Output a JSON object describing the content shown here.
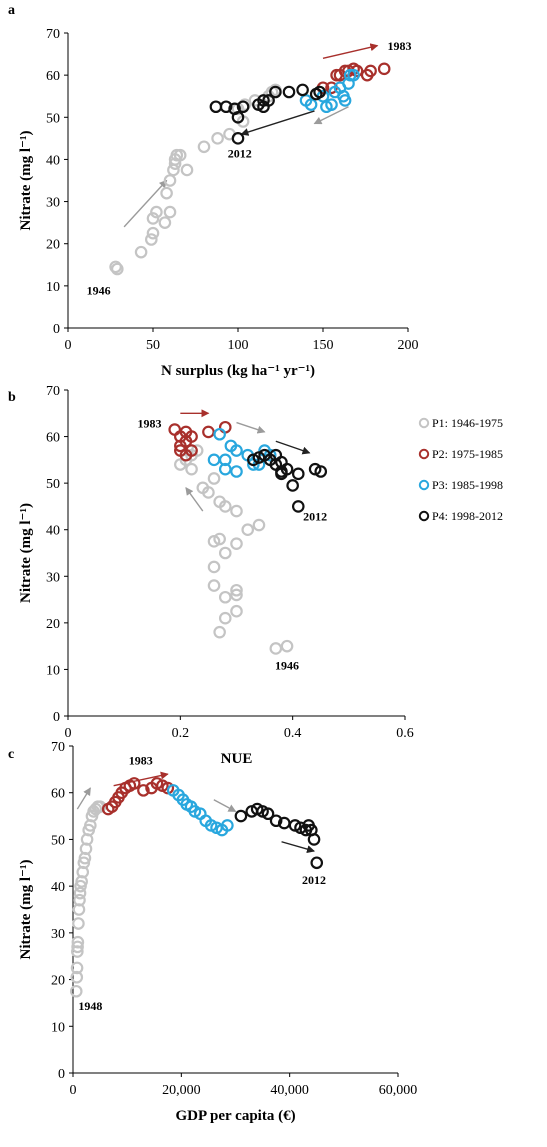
{
  "colors": {
    "P1": "#c4c4c4",
    "P2": "#a8302c",
    "P3": "#29a7de",
    "P4": "#111111",
    "arrow_gray": "#9b9b9b",
    "arrow_dark": "#222222"
  },
  "legend": [
    {
      "key": "P1",
      "label": "P1: 1946-1975"
    },
    {
      "key": "P2",
      "label": "P2: 1975-1985"
    },
    {
      "key": "P3",
      "label": "P3: 1985-1998"
    },
    {
      "key": "P4",
      "label": "P4: 1998-2012"
    }
  ],
  "chart_data": [
    {
      "panel": "a",
      "type": "scatter",
      "xlabel": "N surplus (kg ha⁻¹ yr⁻¹)",
      "ylabel": "Nitrate (mg l⁻¹)",
      "xlim": [
        0,
        200
      ],
      "ylim": [
        0,
        70
      ],
      "xticks": [
        "0",
        "50",
        "100",
        "150",
        "200"
      ],
      "yticks": [
        "0",
        "10",
        "20",
        "30",
        "40",
        "50",
        "60",
        "70"
      ],
      "series": [
        {
          "key": "P1",
          "points": [
            [
              28,
              14.5
            ],
            [
              29,
              14
            ],
            [
              43,
              18
            ],
            [
              49,
              21
            ],
            [
              50,
              22.5
            ],
            [
              50,
              26
            ],
            [
              52,
              27.5
            ],
            [
              57,
              25
            ],
            [
              60,
              27.5
            ],
            [
              58,
              32
            ],
            [
              60,
              35
            ],
            [
              62,
              37.5
            ],
            [
              63,
              39
            ],
            [
              63,
              40
            ],
            [
              64,
              41
            ],
            [
              66,
              41
            ],
            [
              70,
              37.5
            ],
            [
              80,
              43
            ],
            [
              88,
              45
            ],
            [
              95,
              46
            ],
            [
              103,
              49
            ],
            [
              100,
              52
            ],
            [
              104,
              53
            ],
            [
              110,
              54
            ],
            [
              118,
              55
            ],
            [
              120,
              56
            ],
            [
              122,
              56.5
            ]
          ]
        },
        {
          "key": "P2",
          "points": [
            [
              150,
              57
            ],
            [
              155,
              57
            ],
            [
              158,
              60
            ],
            [
              160,
              60
            ],
            [
              163,
              61
            ],
            [
              165,
              61
            ],
            [
              168,
              61.5
            ],
            [
              170,
              61
            ],
            [
              176,
              60
            ],
            [
              178,
              61
            ],
            [
              186,
              61.5
            ]
          ]
        },
        {
          "key": "P3",
          "points": [
            [
              140,
              54
            ],
            [
              143,
              53
            ],
            [
              150,
              55
            ],
            [
              152,
              52.5
            ],
            [
              155,
              53
            ],
            [
              157,
              56
            ],
            [
              160,
              57
            ],
            [
              162,
              55
            ],
            [
              163,
              54
            ],
            [
              165,
              58
            ],
            [
              166,
              60
            ],
            [
              168,
              60
            ]
          ]
        },
        {
          "key": "P4",
          "points": [
            [
              87,
              52.5
            ],
            [
              93,
              52.5
            ],
            [
              98,
              52
            ],
            [
              100,
              50
            ],
            [
              103,
              52.5
            ],
            [
              100,
              45
            ],
            [
              112,
              53
            ],
            [
              115,
              52.5
            ],
            [
              115,
              54
            ],
            [
              118,
              54
            ],
            [
              122,
              56
            ],
            [
              130,
              56
            ],
            [
              138,
              56.5
            ],
            [
              146,
              55.5
            ],
            [
              148,
              56
            ]
          ]
        }
      ],
      "annotations": [
        {
          "text": "1946",
          "x": 18,
          "y": 8
        },
        {
          "text": "1983",
          "x": 195,
          "y": 66
        },
        {
          "text": "2012",
          "x": 101,
          "y": 40.5
        }
      ],
      "arrows": [
        {
          "color": "gray",
          "from": [
            33,
            24
          ],
          "to": [
            58,
            35
          ]
        },
        {
          "color": "red",
          "from": [
            150,
            64
          ],
          "to": [
            182,
            67
          ]
        },
        {
          "color": "dark",
          "from": [
            145,
            51.5
          ],
          "to": [
            102,
            46
          ]
        },
        {
          "color": "gray",
          "from": [
            165,
            52.5
          ],
          "to": [
            145,
            48.5
          ]
        }
      ]
    },
    {
      "panel": "b",
      "type": "scatter",
      "xlabel": "NUE",
      "ylabel": "Nitrate (mg l⁻¹)",
      "xlim": [
        0,
        0.6
      ],
      "ylim": [
        0,
        70
      ],
      "xticks": [
        "0",
        "0.2",
        "0.4",
        "0.6"
      ],
      "yticks": [
        "0",
        "10",
        "20",
        "30",
        "40",
        "50",
        "60",
        "70"
      ],
      "series": [
        {
          "key": "P1",
          "points": [
            [
              0.37,
              14.5
            ],
            [
              0.39,
              15
            ],
            [
              0.27,
              18
            ],
            [
              0.28,
              21
            ],
            [
              0.3,
              22.5
            ],
            [
              0.26,
              28
            ],
            [
              0.28,
              25.5
            ],
            [
              0.3,
              26
            ],
            [
              0.3,
              27
            ],
            [
              0.26,
              32
            ],
            [
              0.28,
              35
            ],
            [
              0.3,
              37
            ],
            [
              0.26,
              37.5
            ],
            [
              0.27,
              38
            ],
            [
              0.32,
              40
            ],
            [
              0.34,
              41
            ],
            [
              0.3,
              44
            ],
            [
              0.28,
              45
            ],
            [
              0.27,
              46
            ],
            [
              0.25,
              48
            ],
            [
              0.24,
              49
            ],
            [
              0.26,
              51
            ],
            [
              0.22,
              53
            ],
            [
              0.2,
              54
            ],
            [
              0.21,
              55
            ],
            [
              0.22,
              56
            ],
            [
              0.23,
              57
            ]
          ]
        },
        {
          "key": "P2",
          "points": [
            [
              0.19,
              61.5
            ],
            [
              0.21,
              61
            ],
            [
              0.2,
              60
            ],
            [
              0.22,
              60
            ],
            [
              0.21,
              59
            ],
            [
              0.2,
              57
            ],
            [
              0.21,
              56
            ],
            [
              0.22,
              57
            ],
            [
              0.25,
              61
            ],
            [
              0.28,
              62
            ],
            [
              0.2,
              58
            ]
          ]
        },
        {
          "key": "P3",
          "points": [
            [
              0.27,
              60.5
            ],
            [
              0.29,
              58
            ],
            [
              0.28,
              55
            ],
            [
              0.3,
              57
            ],
            [
              0.32,
              56
            ],
            [
              0.3,
              52.5
            ],
            [
              0.33,
              54
            ],
            [
              0.34,
              54
            ],
            [
              0.35,
              57
            ],
            [
              0.36,
              56
            ],
            [
              0.28,
              53
            ],
            [
              0.26,
              55
            ]
          ]
        },
        {
          "key": "P4",
          "points": [
            [
              0.41,
              45
            ],
            [
              0.4,
              49.5
            ],
            [
              0.41,
              52
            ],
            [
              0.44,
              53
            ],
            [
              0.45,
              52.5
            ],
            [
              0.38,
              52
            ],
            [
              0.37,
              54
            ],
            [
              0.38,
              54.5
            ],
            [
              0.36,
              55
            ],
            [
              0.35,
              56
            ],
            [
              0.34,
              55.5
            ],
            [
              0.33,
              55
            ],
            [
              0.37,
              56
            ],
            [
              0.38,
              52.5
            ],
            [
              0.39,
              53
            ]
          ]
        }
      ],
      "annotations": [
        {
          "text": "1983",
          "x": 0.145,
          "y": 62
        },
        {
          "text": "2012",
          "x": 0.44,
          "y": 42
        },
        {
          "text": "1946",
          "x": 0.39,
          "y": 10
        }
      ],
      "arrows": [
        {
          "color": "red",
          "from": [
            0.2,
            65
          ],
          "to": [
            0.25,
            65
          ]
        },
        {
          "color": "gray",
          "from": [
            0.3,
            63
          ],
          "to": [
            0.35,
            61
          ]
        },
        {
          "color": "dark",
          "from": [
            0.37,
            59
          ],
          "to": [
            0.43,
            56.5
          ]
        },
        {
          "color": "gray",
          "from": [
            0.24,
            44
          ],
          "to": [
            0.21,
            49
          ]
        }
      ]
    },
    {
      "panel": "c",
      "type": "scatter",
      "xlabel": "GDP per capita (€)",
      "ylabel": "Nitrate (mg l⁻¹)",
      "xlim": [
        0,
        60000
      ],
      "ylim": [
        0,
        70
      ],
      "xticks": [
        "0",
        "20,000",
        "40,000",
        "60,000"
      ],
      "yticks": [
        "0",
        "10",
        "20",
        "30",
        "40",
        "50",
        "60",
        "70"
      ],
      "series": [
        {
          "key": "P1",
          "points": [
            [
              600,
              17.5
            ],
            [
              700,
              20.5
            ],
            [
              750,
              22.5
            ],
            [
              800,
              26
            ],
            [
              850,
              27
            ],
            [
              900,
              28
            ],
            [
              1000,
              32
            ],
            [
              1100,
              35
            ],
            [
              1200,
              37
            ],
            [
              1300,
              38.5
            ],
            [
              1400,
              40
            ],
            [
              1600,
              41
            ],
            [
              1800,
              43
            ],
            [
              2000,
              45
            ],
            [
              2200,
              46
            ],
            [
              2400,
              48
            ],
            [
              2600,
              50
            ],
            [
              2900,
              52
            ],
            [
              3200,
              53
            ],
            [
              3500,
              55
            ],
            [
              3800,
              56
            ],
            [
              4200,
              56.5
            ],
            [
              4600,
              57
            ],
            [
              5000,
              57
            ]
          ]
        },
        {
          "key": "P2",
          "points": [
            [
              6500,
              56.5
            ],
            [
              7200,
              57
            ],
            [
              7800,
              58
            ],
            [
              8400,
              59
            ],
            [
              9000,
              60
            ],
            [
              9700,
              61
            ],
            [
              10500,
              61.5
            ],
            [
              11300,
              62
            ],
            [
              13000,
              60.5
            ],
            [
              14500,
              61
            ],
            [
              15500,
              62
            ],
            [
              16500,
              61.5
            ],
            [
              17500,
              61
            ]
          ]
        },
        {
          "key": "P3",
          "points": [
            [
              18500,
              60.5
            ],
            [
              19500,
              59.5
            ],
            [
              20300,
              58.5
            ],
            [
              21000,
              57.5
            ],
            [
              21800,
              57
            ],
            [
              22500,
              56
            ],
            [
              23500,
              55.5
            ],
            [
              24500,
              54
            ],
            [
              25500,
              53
            ],
            [
              26500,
              52.5
            ],
            [
              27500,
              52
            ],
            [
              28500,
              53
            ]
          ]
        },
        {
          "key": "P4",
          "points": [
            [
              31000,
              55
            ],
            [
              33000,
              56
            ],
            [
              34000,
              56.5
            ],
            [
              35000,
              56
            ],
            [
              36000,
              55.5
            ],
            [
              37500,
              54
            ],
            [
              39000,
              53.5
            ],
            [
              41000,
              53
            ],
            [
              42000,
              52.5
            ],
            [
              43000,
              52
            ],
            [
              43500,
              53
            ],
            [
              44000,
              52
            ],
            [
              44500,
              50
            ],
            [
              45000,
              45
            ]
          ]
        }
      ],
      "annotations": [
        {
          "text": "1983",
          "x": 12500,
          "y": 66
        },
        {
          "text": "1948",
          "x": 3200,
          "y": 13.5
        },
        {
          "text": "2012",
          "x": 44500,
          "y": 40.5
        }
      ],
      "arrows": [
        {
          "color": "gray",
          "from": [
            800,
            56.5
          ],
          "to": [
            3200,
            61
          ]
        },
        {
          "color": "red",
          "from": [
            7500,
            61.5
          ],
          "to": [
            17500,
            64
          ]
        },
        {
          "color": "gray",
          "from": [
            26000,
            58.5
          ],
          "to": [
            30000,
            56
          ]
        },
        {
          "color": "dark",
          "from": [
            38500,
            49.5
          ],
          "to": [
            44500,
            47.5
          ]
        }
      ]
    }
  ]
}
